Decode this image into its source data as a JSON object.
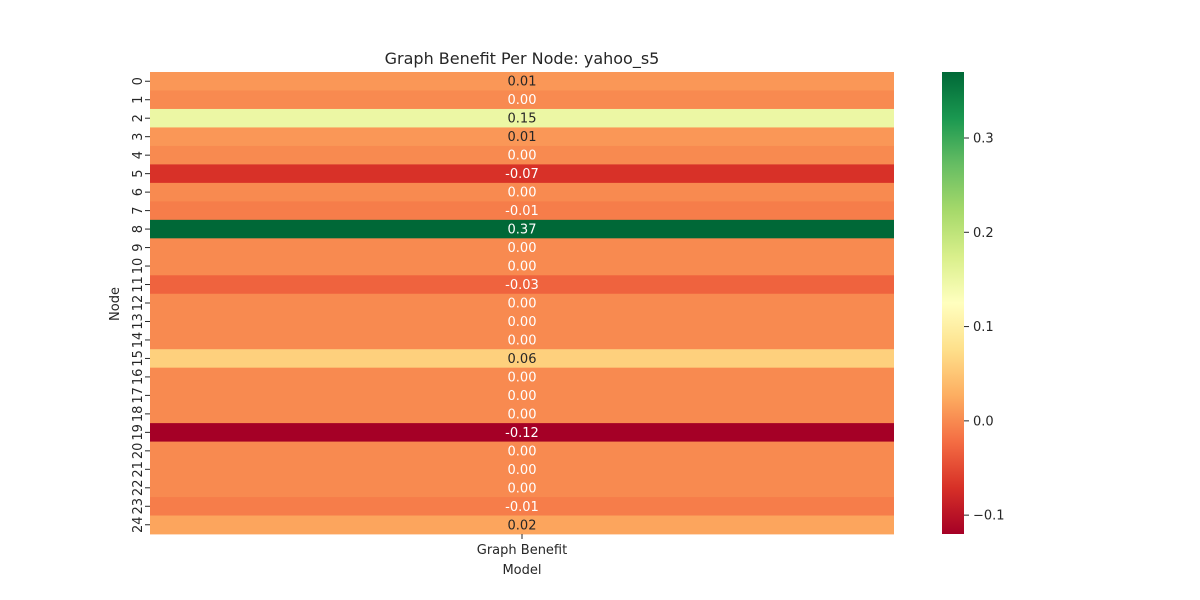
{
  "chart_data": {
    "type": "heatmap",
    "title": "Graph Benefit Per Node: yahoo_s5",
    "xlabel": "Model",
    "ylabel": "Node",
    "x_categories": [
      "Graph Benefit"
    ],
    "y_categories": [
      "0",
      "1",
      "2",
      "3",
      "4",
      "5",
      "6",
      "7",
      "8",
      "9",
      "10",
      "11",
      "12",
      "13",
      "14",
      "15",
      "16",
      "17",
      "18",
      "19",
      "20",
      "21",
      "22",
      "23",
      "24"
    ],
    "values": [
      0.01,
      0.0,
      0.15,
      0.01,
      0.0,
      -0.07,
      0.0,
      -0.01,
      0.37,
      0.0,
      0.0,
      -0.03,
      0.0,
      0.0,
      0.0,
      0.06,
      0.0,
      0.0,
      0.0,
      -0.12,
      0.0,
      0.0,
      0.0,
      -0.01,
      0.02
    ],
    "cell_labels": [
      "0.01",
      "0.00",
      "0.15",
      "0.01",
      "0.00",
      "-0.07",
      "0.00",
      "-0.01",
      "0.37",
      "0.00",
      "0.00",
      "-0.03",
      "0.00",
      "0.00",
      "0.00",
      "0.06",
      "0.00",
      "0.00",
      "0.00",
      "-0.12",
      "0.00",
      "0.00",
      "0.00",
      "-0.01",
      "0.02"
    ],
    "colormap": "RdYlGn",
    "color_range": [
      -0.12,
      0.37
    ],
    "colorbar_ticks": [
      -0.1,
      0.0,
      0.1,
      0.2,
      0.3
    ],
    "colorbar_tick_labels": [
      "−0.1",
      "0.0",
      "0.1",
      "0.2",
      "0.3"
    ],
    "colorbar": true,
    "grid": false
  }
}
